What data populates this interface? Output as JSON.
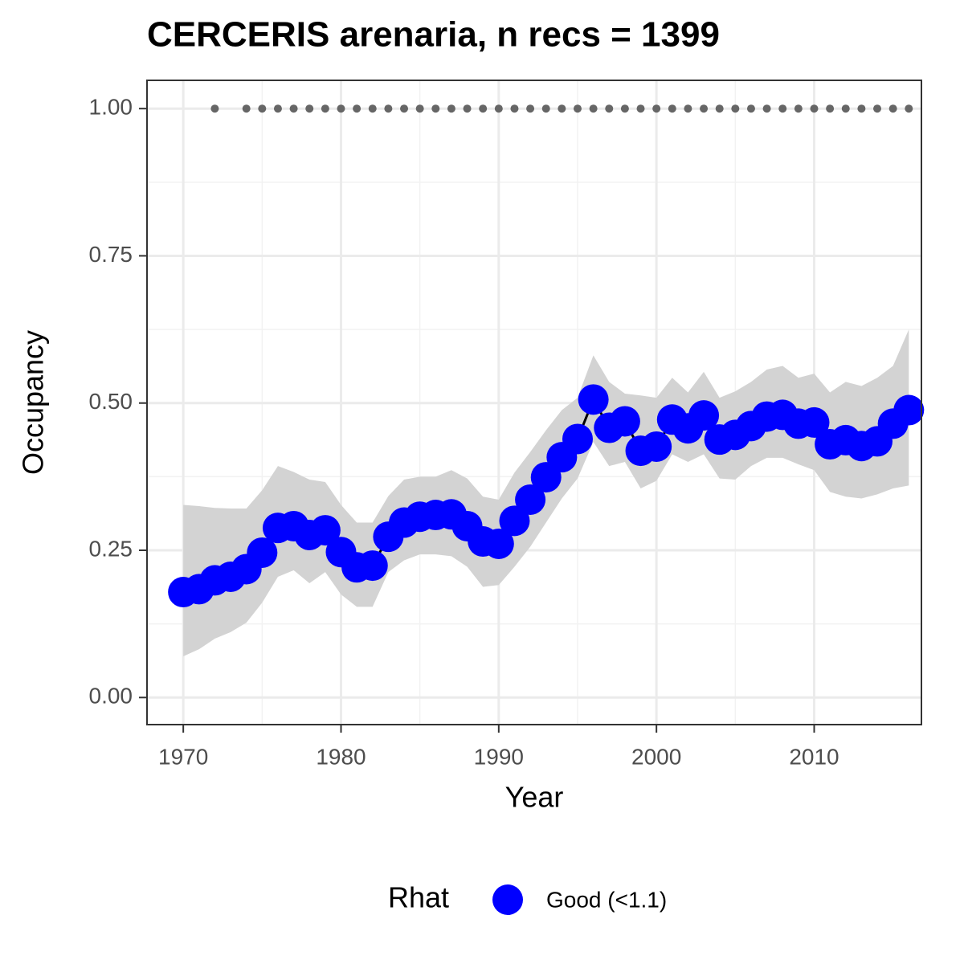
{
  "chart_data": {
    "type": "line",
    "title": "CERCERIS arenaria, n recs = 1399",
    "x_label": "Year",
    "y_label": "Occupancy",
    "legend_title": "Rhat",
    "x": [
      1970,
      1971,
      1972,
      1973,
      1974,
      1975,
      1976,
      1977,
      1978,
      1979,
      1980,
      1981,
      1982,
      1983,
      1984,
      1985,
      1986,
      1987,
      1988,
      1989,
      1990,
      1991,
      1992,
      1993,
      1994,
      1995,
      1996,
      1997,
      1998,
      1999,
      2000,
      2001,
      2002,
      2003,
      2004,
      2005,
      2006,
      2007,
      2008,
      2009,
      2010,
      2011,
      2012,
      2013,
      2014,
      2015,
      2016
    ],
    "series": [
      {
        "name": "Good (<1.1)",
        "color": "#0000ff",
        "band_color": "#d3d3d3",
        "line_color": "#000000",
        "values": [
          0.179,
          0.184,
          0.199,
          0.205,
          0.218,
          0.246,
          0.288,
          0.291,
          0.276,
          0.284,
          0.247,
          0.221,
          0.224,
          0.273,
          0.297,
          0.307,
          0.31,
          0.311,
          0.291,
          0.265,
          0.261,
          0.3,
          0.336,
          0.374,
          0.408,
          0.439,
          0.506,
          0.458,
          0.469,
          0.419,
          0.426,
          0.472,
          0.457,
          0.479,
          0.438,
          0.446,
          0.461,
          0.477,
          0.48,
          0.465,
          0.467,
          0.43,
          0.437,
          0.427,
          0.435,
          0.465,
          0.488
        ],
        "upper": [
          0.327,
          0.325,
          0.322,
          0.321,
          0.321,
          0.352,
          0.393,
          0.383,
          0.37,
          0.366,
          0.327,
          0.297,
          0.297,
          0.342,
          0.37,
          0.375,
          0.375,
          0.386,
          0.372,
          0.341,
          0.336,
          0.382,
          0.417,
          0.454,
          0.488,
          0.509,
          0.581,
          0.536,
          0.516,
          0.513,
          0.509,
          0.543,
          0.518,
          0.553,
          0.509,
          0.52,
          0.536,
          0.557,
          0.563,
          0.543,
          0.55,
          0.518,
          0.536,
          0.529,
          0.543,
          0.563,
          0.625
        ],
        "lower": [
          0.07,
          0.082,
          0.1,
          0.111,
          0.127,
          0.161,
          0.205,
          0.216,
          0.194,
          0.213,
          0.175,
          0.154,
          0.154,
          0.213,
          0.233,
          0.243,
          0.243,
          0.24,
          0.222,
          0.188,
          0.191,
          0.222,
          0.256,
          0.297,
          0.338,
          0.372,
          0.434,
          0.393,
          0.4,
          0.355,
          0.368,
          0.413,
          0.4,
          0.413,
          0.372,
          0.37,
          0.393,
          0.407,
          0.407,
          0.396,
          0.386,
          0.349,
          0.341,
          0.338,
          0.345,
          0.355,
          0.36
        ]
      }
    ],
    "records": {
      "color": "#666666",
      "x": [
        1972,
        1974,
        1975,
        1976,
        1977,
        1978,
        1979,
        1980,
        1981,
        1982,
        1983,
        1984,
        1985,
        1986,
        1987,
        1988,
        1989,
        1990,
        1991,
        1992,
        1993,
        1994,
        1995,
        1996,
        1997,
        1998,
        1999,
        2000,
        2001,
        2002,
        2003,
        2004,
        2005,
        2006,
        2007,
        2008,
        2009,
        2010,
        2011,
        2012,
        2013,
        2014,
        2015,
        2016
      ],
      "values": [
        1,
        1,
        1,
        1,
        1,
        1,
        1,
        1,
        1,
        1,
        1,
        1,
        1,
        1,
        1,
        1,
        1,
        1,
        1,
        1,
        1,
        1,
        1,
        1,
        1,
        1,
        1,
        1,
        1,
        1,
        1,
        1,
        1,
        1,
        1,
        1,
        1,
        1,
        1,
        1,
        1,
        1,
        1,
        1
      ]
    },
    "xlim": [
      1967.7,
      2016.8
    ],
    "ylim": [
      -0.046,
      1.048
    ],
    "xticks": [
      1970,
      1980,
      1990,
      2000,
      2010
    ],
    "yticks": [
      {
        "value": 0,
        "label": "0.00"
      },
      {
        "value": 0.25,
        "label": "0.25"
      },
      {
        "value": 0.5,
        "label": "0.50"
      },
      {
        "value": 0.75,
        "label": "0.75"
      },
      {
        "value": 1,
        "label": "1.00"
      }
    ],
    "grid": true
  }
}
